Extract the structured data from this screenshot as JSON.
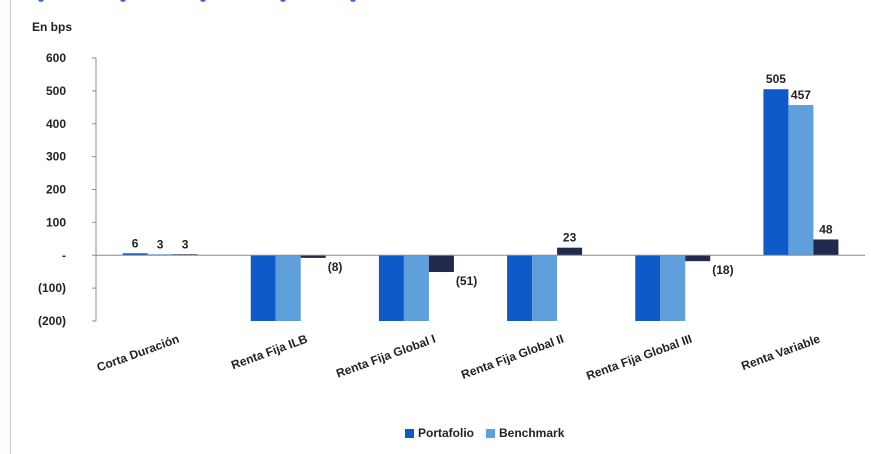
{
  "chart_data": {
    "type": "bar",
    "ylabel": "En bps",
    "categories": [
      "Corta Duración",
      "Renta Fija ILB",
      "Renta Fija Global I",
      "Renta Fija Global II",
      "Renta Fija Global III",
      "Renta Variable"
    ],
    "series": [
      {
        "name": "Portafolio",
        "values": [
          6,
          -200,
          -200,
          -200,
          -200,
          505
        ],
        "color": "#0d5ac8"
      },
      {
        "name": "Benchmark",
        "values": [
          3,
          -200,
          -200,
          -200,
          -200,
          457
        ],
        "color": "#5fa0dc"
      },
      {
        "values": [
          3,
          -8,
          -51,
          23,
          -18,
          48
        ],
        "color": "#1f2a4d"
      }
    ],
    "data_labels": [
      [
        "6",
        "",
        "",
        "",
        "",
        "505"
      ],
      [
        "3",
        "",
        "",
        "",
        "",
        "457"
      ],
      [
        "3",
        "(8)",
        "(51)",
        "23",
        "(18)",
        "48"
      ]
    ],
    "yticks": [
      600,
      500,
      400,
      300,
      200,
      100,
      0,
      -100,
      -200
    ],
    "ytick_labels": [
      "600",
      "500",
      "400",
      "300",
      "200",
      "100",
      "-",
      "(100)",
      "(200)"
    ],
    "ylim": [
      -200,
      600
    ],
    "grid": false,
    "legend_position": "bottom"
  }
}
